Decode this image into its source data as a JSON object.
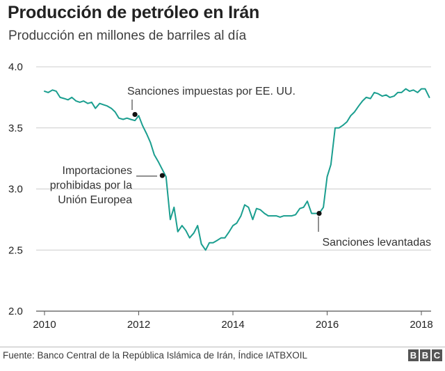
{
  "title": "Producción de petróleo en Irán",
  "subtitle": "Producción en millones de barriles al día",
  "source": "Fuente: Banco Central de la República Islámica de Irán, Índice IATBXOIL",
  "brand": {
    "letters": [
      "B",
      "B",
      "C"
    ]
  },
  "colors": {
    "line": "#1a9e8f",
    "grid": "#cccccc",
    "text": "#222222",
    "axis": "#555555"
  },
  "chart_data": {
    "type": "line",
    "title": "Producción de petróleo en Irán",
    "ylabel": "Producción en millones de barriles al día",
    "xlabel": "",
    "xlim": [
      2010,
      2018.2
    ],
    "ylim": [
      2.0,
      4.0
    ],
    "x_ticks": [
      2010,
      2012,
      2014,
      2016,
      2018
    ],
    "y_ticks": [
      2.0,
      2.5,
      3.0,
      3.5,
      4.0
    ],
    "y_tick_labels": [
      "2.0",
      "2.5",
      "3.0",
      "3.5",
      "4.0"
    ],
    "grid": true,
    "series": [
      {
        "name": "Producción de petróleo",
        "x": [
          2010.0,
          2010.08,
          2010.17,
          2010.25,
          2010.33,
          2010.42,
          2010.5,
          2010.58,
          2010.67,
          2010.75,
          2010.83,
          2010.92,
          2011.0,
          2011.08,
          2011.17,
          2011.25,
          2011.33,
          2011.42,
          2011.5,
          2011.58,
          2011.67,
          2011.75,
          2011.83,
          2011.92,
          2012.0,
          2012.08,
          2012.17,
          2012.25,
          2012.33,
          2012.42,
          2012.5,
          2012.58,
          2012.67,
          2012.75,
          2012.83,
          2012.92,
          2013.0,
          2013.08,
          2013.17,
          2013.25,
          2013.33,
          2013.42,
          2013.5,
          2013.58,
          2013.67,
          2013.75,
          2013.83,
          2013.92,
          2014.0,
          2014.08,
          2014.17,
          2014.25,
          2014.33,
          2014.42,
          2014.5,
          2014.58,
          2014.67,
          2014.75,
          2014.83,
          2014.92,
          2015.0,
          2015.08,
          2015.17,
          2015.25,
          2015.33,
          2015.42,
          2015.5,
          2015.58,
          2015.67,
          2015.75,
          2015.83,
          2015.92,
          2016.0,
          2016.08,
          2016.17,
          2016.25,
          2016.33,
          2016.42,
          2016.5,
          2016.58,
          2016.67,
          2016.75,
          2016.83,
          2016.92,
          2017.0,
          2017.08,
          2017.17,
          2017.25,
          2017.33,
          2017.42,
          2017.5,
          2017.58,
          2017.67,
          2017.75,
          2017.83,
          2017.92,
          2018.0,
          2018.08,
          2018.17
        ],
        "values": [
          3.8,
          3.79,
          3.81,
          3.8,
          3.75,
          3.74,
          3.73,
          3.75,
          3.72,
          3.71,
          3.72,
          3.7,
          3.71,
          3.66,
          3.7,
          3.69,
          3.68,
          3.66,
          3.63,
          3.58,
          3.57,
          3.58,
          3.57,
          3.56,
          3.6,
          3.52,
          3.45,
          3.38,
          3.28,
          3.22,
          3.16,
          3.1,
          2.75,
          2.85,
          2.65,
          2.7,
          2.66,
          2.6,
          2.64,
          2.7,
          2.55,
          2.5,
          2.56,
          2.56,
          2.58,
          2.6,
          2.6,
          2.65,
          2.7,
          2.72,
          2.78,
          2.87,
          2.85,
          2.75,
          2.84,
          2.83,
          2.8,
          2.78,
          2.78,
          2.78,
          2.77,
          2.78,
          2.78,
          2.78,
          2.79,
          2.84,
          2.85,
          2.9,
          2.8,
          2.8,
          2.8,
          2.85,
          3.1,
          3.2,
          3.5,
          3.5,
          3.52,
          3.55,
          3.6,
          3.63,
          3.68,
          3.72,
          3.75,
          3.74,
          3.79,
          3.78,
          3.76,
          3.77,
          3.75,
          3.76,
          3.79,
          3.79,
          3.82,
          3.8,
          3.81,
          3.79,
          3.82,
          3.82,
          3.75
        ]
      }
    ],
    "annotations": [
      {
        "id": "sanciones-impuestas",
        "x": 2011.92,
        "y": 3.61,
        "label": [
          "Sanciones impuestas por EE. UU."
        ]
      },
      {
        "id": "importaciones-prohibidas",
        "x": 2012.5,
        "y": 3.11,
        "label": [
          "Importaciones",
          "prohibidas por la",
          "Unión Europea"
        ]
      },
      {
        "id": "sanciones-levantadas",
        "x": 2015.83,
        "y": 2.8,
        "label": [
          "Sanciones levantadas"
        ]
      }
    ]
  }
}
